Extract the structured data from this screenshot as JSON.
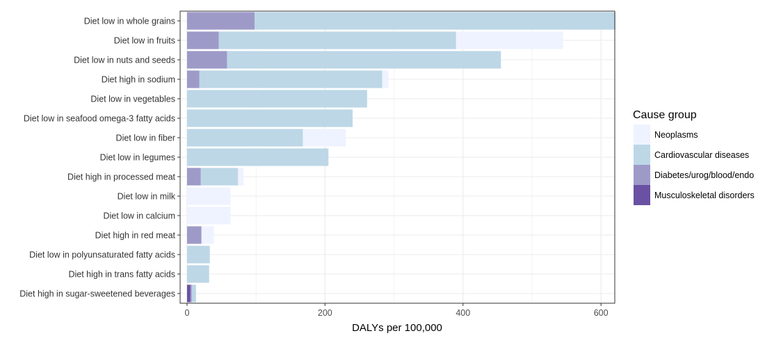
{
  "chart_data": {
    "type": "bar",
    "orientation": "horizontal",
    "stacked": true,
    "categories": [
      "Diet low in whole grains",
      "Diet low in fruits",
      "Diet low in nuts and seeds",
      "Diet high in sodium",
      "Diet low in vegetables",
      "Diet low in seafood omega-3 fatty acids",
      "Diet low in fiber",
      "Diet low in legumes",
      "Diet high in processed meat",
      "Diet low in milk",
      "Diet low in calcium",
      "Diet high in red meat",
      "Diet low in polyunsaturated fatty acids",
      "Diet high in trans fatty acids",
      "Diet high in sugar-sweetened beverages"
    ],
    "series": [
      {
        "name": "Musculoskeletal disorders",
        "color": "#6a51a3",
        "values": [
          0,
          0,
          0,
          0,
          0,
          0,
          0,
          0,
          0,
          0,
          0,
          0,
          0,
          0,
          5
        ]
      },
      {
        "name": "Diabetes/urog/blood/endo",
        "color": "#9e9ac8",
        "values": [
          98,
          46,
          58,
          18,
          0,
          0,
          0,
          0,
          20,
          0,
          0,
          21,
          0,
          0,
          2
        ]
      },
      {
        "name": "Cardiovascular diseases",
        "color": "#bdd7e7",
        "values": [
          523,
          344,
          397,
          265,
          261,
          240,
          168,
          205,
          54,
          0,
          0,
          0,
          33,
          32,
          6
        ]
      },
      {
        "name": "Neoplasms",
        "color": "#eff3ff",
        "values": [
          0,
          155,
          0,
          9,
          0,
          0,
          62,
          0,
          8,
          63,
          63,
          18,
          0,
          0,
          0
        ]
      }
    ],
    "xlabel": "DALYs per 100,000",
    "ylabel": "",
    "xlim": [
      -10,
      620
    ],
    "xticks": [
      0,
      200,
      400,
      600
    ],
    "grid": true,
    "legend": {
      "title": "Cause group",
      "position": "right",
      "items": [
        "Neoplasms",
        "Cardiovascular diseases",
        "Diabetes/urog/blood/endo",
        "Musculoskeletal disorders"
      ]
    }
  }
}
